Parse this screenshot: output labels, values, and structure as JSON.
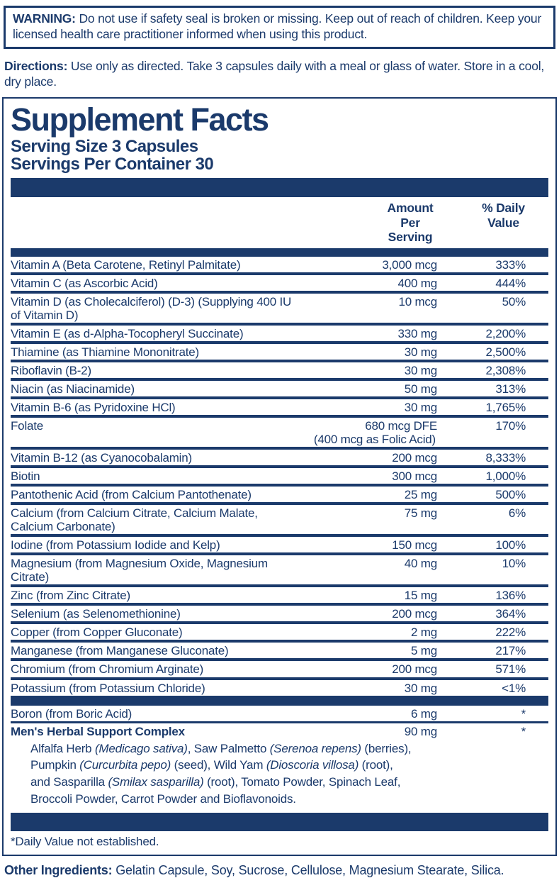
{
  "colors": {
    "navy": "#1b3a6b",
    "background": "#ffffff"
  },
  "warning": {
    "label": "WARNING:",
    "text": " Do not use if safety seal is broken or missing. Keep out of reach of children. Keep your licensed health care practitioner informed when using this product."
  },
  "directions": {
    "label": "Directions:",
    "text": " Use only as directed. Take 3 capsules daily with a meal or glass of water. Store in a cool, dry place."
  },
  "supplement_facts": {
    "title": "Supplement Facts",
    "serving_size": "Serving Size 3 Capsules",
    "servings_per_container": "Servings Per Container 30",
    "columns": {
      "amount": "Amount Per\nServing",
      "daily_value": "% Daily\nValue"
    },
    "rows": [
      {
        "name": "Vitamin A (Beta Carotene, Retinyl Palmitate)",
        "amount": "3,000 mcg",
        "dv": "333%",
        "sep": "double"
      },
      {
        "name": "Vitamin C (as Ascorbic Acid)",
        "amount": "400 mg",
        "dv": "444%",
        "sep": "double"
      },
      {
        "name": "Vitamin D (as Cholecalciferol) (D-3) (Supplying 400 IU of Vitamin D)",
        "amount": "10 mcg",
        "dv": "50%",
        "sep": "double"
      },
      {
        "name": "Vitamin E (as d-Alpha-Tocopheryl Succinate)",
        "amount": "330 mg",
        "dv": "2,200%",
        "sep": "double"
      },
      {
        "name": "Thiamine (as Thiamine Mononitrate)",
        "amount": "30 mg",
        "dv": "2,500%",
        "sep": "double"
      },
      {
        "name": "Riboflavin (B-2)",
        "amount": "30 mg",
        "dv": "2,308%",
        "sep": "double"
      },
      {
        "name": "Niacin (as Niacinamide)",
        "amount": "50 mg",
        "dv": "313%",
        "sep": "double"
      },
      {
        "name": "Vitamin B-6 (as Pyridoxine HCl)",
        "amount": "30 mg",
        "dv": "1,765%",
        "sep": "double"
      },
      {
        "name": "Folate",
        "amount": "680 mcg DFE",
        "amount_sub": "(400 mcg as Folic Acid)",
        "dv": "170%",
        "sep": "double"
      },
      {
        "name": "Vitamin B-12 (as Cyanocobalamin)",
        "amount": "200 mcg",
        "dv": "8,333%",
        "sep": "double"
      },
      {
        "name": "Biotin",
        "amount": "300 mcg",
        "dv": "1,000%",
        "sep": "double"
      },
      {
        "name": "Pantothenic Acid (from Calcium Pantothenate)",
        "amount": "25 mg",
        "dv": "500%",
        "sep": "double"
      },
      {
        "name": "Calcium (from Calcium Citrate, Calcium Malate, Calcium Carbonate)",
        "amount": "75 mg",
        "dv": "6%",
        "sep": "double"
      },
      {
        "name": "Iodine (from Potassium Iodide and Kelp)",
        "amount": "150 mcg",
        "dv": "100%",
        "sep": "double"
      },
      {
        "name": "Magnesium (from Magnesium Oxide, Magnesium Citrate)",
        "amount": "40 mg",
        "dv": "10%",
        "sep": "double"
      },
      {
        "name": "Zinc (from Zinc Citrate)",
        "amount": "15 mg",
        "dv": "136%",
        "sep": "double"
      },
      {
        "name": "Selenium (as Selenomethionine)",
        "amount": "200 mcg",
        "dv": "364%",
        "sep": "double"
      },
      {
        "name": "Copper (from Copper Gluconate)",
        "amount": "2 mg",
        "dv": "222%",
        "sep": "double"
      },
      {
        "name": "Manganese (from Manganese Gluconate)",
        "amount": "5 mg",
        "dv": "217%",
        "sep": "double"
      },
      {
        "name": "Chromium (from Chromium Arginate)",
        "amount": "200 mcg",
        "dv": "571%",
        "sep": "double"
      },
      {
        "name": "Potassium (from Potassium Chloride)",
        "amount": "30 mg",
        "dv": "<1%",
        "sep": "bar"
      },
      {
        "name": "Boron (from Boric Acid)",
        "amount": "6 mg",
        "dv": "*",
        "sep": "thick"
      },
      {
        "name": "Men's Herbal Support Complex",
        "bold": true,
        "amount": "90 mg",
        "dv": "*",
        "sep": "bar-bottom",
        "desc_lines": [
          "Alfalfa Herb *(Medicago sativa)*, Saw Palmetto *(Serenoa repens)* (berries),",
          "Pumpkin *(Curcurbita pepo)* (seed), Wild Yam *(Dioscoria villosa)* (root),",
          "and Sasparilla *(Smilax sasparilla)* (root), Tomato Powder, Spinach Leaf,",
          "Broccoli Powder, Carrot Powder and Bioflavonoids."
        ]
      }
    ],
    "footnote": "*Daily Value not established."
  },
  "other_ingredients": {
    "label": "Other Ingredients:",
    "text": " Gelatin Capsule, Soy, Sucrose, Cellulose, Magnesium Stearate, Silica."
  }
}
